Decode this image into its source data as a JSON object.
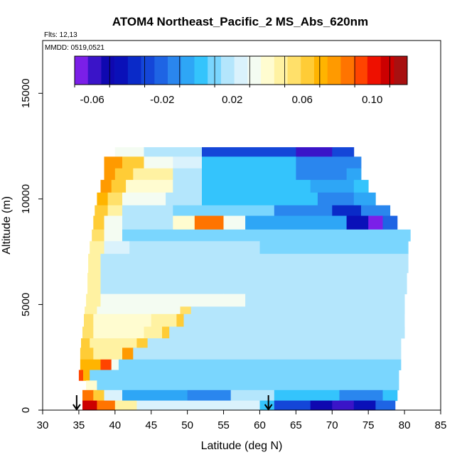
{
  "chart_data": {
    "type": "heatmap",
    "title": "ATOM4 Northeast_Pacific_2 MS_Abs_620nm",
    "notes": [
      "Flts: 12,13",
      "MMDD: 0519,0521"
    ],
    "xlabel": "Latitude (deg N)",
    "ylabel": "Altitude (m)",
    "xlim": [
      30,
      85
    ],
    "ylim": [
      0,
      17500
    ],
    "x_ticks": [
      "30",
      "35",
      "40",
      "45",
      "50",
      "55",
      "60",
      "65",
      "70",
      "75",
      "80",
      "85"
    ],
    "y_ticks": [
      "0",
      "5000",
      "10000",
      "15000"
    ],
    "colorbar": {
      "range": [
        -0.07,
        0.12
      ],
      "tick_values": [
        -0.06,
        -0.02,
        0.02,
        0.06,
        0.1
      ],
      "tick_labels": [
        "-0.06",
        "-0.02",
        "0.02",
        "0.06",
        "0.10"
      ],
      "colors": [
        "#7b1fe8",
        "#3a14c8",
        "#0f08b0",
        "#0a10b8",
        "#0a2ac8",
        "#1446d8",
        "#1e64e4",
        "#2a86ee",
        "#2ea6f6",
        "#34c4fc",
        "#7ad6fe",
        "#b4e6fc",
        "#daf2fc",
        "#f4fcf2",
        "#fffcd0",
        "#fff2a2",
        "#ffe06a",
        "#ffcc36",
        "#ffb400",
        "#ff9a00",
        "#ff7400",
        "#ff4400",
        "#ee1000",
        "#cc0000",
        "#a81010"
      ]
    },
    "arrows_lat": [
      34.7,
      61.2
    ],
    "bands": [
      {
        "alt": [
          12000,
          12450
        ],
        "segs": [
          [
            40,
            44,
            0.03
          ],
          [
            44,
            52,
            0.015
          ],
          [
            52,
            65,
            -0.025
          ],
          [
            65,
            70,
            -0.055
          ],
          [
            70,
            73,
            -0.03
          ]
        ]
      },
      {
        "alt": [
          11450,
          12000
        ],
        "segs": [
          [
            38.5,
            41,
            0.08
          ],
          [
            41,
            44,
            0.065
          ],
          [
            44,
            48,
            0.035
          ],
          [
            48,
            52,
            0.025
          ],
          [
            52,
            65,
            0.0
          ],
          [
            65,
            70,
            -0.015
          ],
          [
            70,
            74,
            -0.01
          ]
        ]
      },
      {
        "alt": [
          10900,
          11450
        ],
        "segs": [
          [
            38.5,
            40,
            0.08
          ],
          [
            40,
            42.5,
            0.065
          ],
          [
            42.5,
            48,
            0.045
          ],
          [
            48,
            52,
            0.02
          ],
          [
            52,
            65,
            0.005
          ],
          [
            65,
            72,
            -0.01
          ],
          [
            72,
            74,
            -0.005
          ]
        ]
      },
      {
        "alt": [
          10300,
          10900
        ],
        "segs": [
          [
            38,
            39.5,
            0.075
          ],
          [
            39.5,
            41.5,
            0.06
          ],
          [
            41.5,
            48,
            0.04
          ],
          [
            48,
            52,
            0.015
          ],
          [
            52,
            67,
            0.005
          ],
          [
            67,
            73,
            -0.005
          ],
          [
            73,
            75,
            0.0
          ]
        ]
      },
      {
        "alt": [
          9700,
          10300
        ],
        "segs": [
          [
            37.5,
            39,
            0.07
          ],
          [
            39,
            41,
            0.055
          ],
          [
            41,
            47,
            0.035
          ],
          [
            47,
            52,
            0.02
          ],
          [
            52,
            68,
            0.0
          ],
          [
            68,
            73,
            -0.015
          ],
          [
            73,
            76,
            -0.005
          ]
        ]
      },
      {
        "alt": [
          9200,
          9700
        ],
        "segs": [
          [
            37.2,
            39,
            0.065
          ],
          [
            39,
            41,
            0.045
          ],
          [
            41,
            48,
            0.02
          ],
          [
            48,
            62,
            0.01
          ],
          [
            62,
            70,
            -0.015
          ],
          [
            70,
            74,
            -0.035
          ],
          [
            74,
            78,
            -0.015
          ]
        ]
      },
      {
        "alt": [
          8550,
          9200
        ],
        "segs": [
          [
            37,
            38.5,
            0.06
          ],
          [
            38.5,
            41,
            0.03
          ],
          [
            41,
            48,
            0.015
          ],
          [
            48,
            51,
            0.04
          ],
          [
            51,
            55,
            0.085
          ],
          [
            55,
            58,
            0.035
          ],
          [
            58,
            72,
            -0.005
          ],
          [
            72,
            75,
            -0.045
          ],
          [
            75,
            77,
            -0.065
          ],
          [
            77,
            79,
            -0.02
          ]
        ]
      },
      {
        "alt": [
          8000,
          8550
        ],
        "segs": [
          [
            36.8,
            38.5,
            0.055
          ],
          [
            38.5,
            41,
            0.03
          ],
          [
            41,
            55,
            0.01
          ],
          [
            55,
            75,
            0.01
          ],
          [
            75,
            80.8,
            0.01
          ]
        ]
      },
      {
        "alt": [
          7400,
          8000
        ],
        "segs": [
          [
            36.5,
            38.5,
            0.05
          ],
          [
            38.5,
            42,
            0.025
          ],
          [
            42,
            60,
            0.015
          ],
          [
            60,
            80.5,
            0.01
          ]
        ]
      },
      {
        "alt": [
          6500,
          7400
        ],
        "segs": [
          [
            36.3,
            38,
            0.05
          ],
          [
            38,
            42,
            0.02
          ],
          [
            42,
            80.5,
            0.015
          ]
        ]
      },
      {
        "alt": [
          5500,
          6500
        ],
        "segs": [
          [
            36.2,
            38,
            0.045
          ],
          [
            38,
            42,
            0.02
          ],
          [
            42,
            80.3,
            0.015
          ]
        ]
      },
      {
        "alt": [
          4900,
          5500
        ],
        "segs": [
          [
            36,
            38,
            0.045
          ],
          [
            38,
            55,
            0.03
          ],
          [
            55,
            58,
            0.035
          ],
          [
            58,
            80,
            0.015
          ]
        ]
      },
      {
        "alt": [
          4550,
          4900
        ],
        "segs": [
          [
            35.8,
            37.5,
            0.05
          ],
          [
            37.5,
            49,
            0.03
          ],
          [
            49,
            50.5,
            0.055
          ],
          [
            50.5,
            80,
            0.015
          ]
        ]
      },
      {
        "alt": [
          3950,
          4550
        ],
        "segs": [
          [
            35.7,
            37,
            0.055
          ],
          [
            37,
            45,
            0.04
          ],
          [
            45,
            48.5,
            0.045
          ],
          [
            48.5,
            49.5,
            0.06
          ],
          [
            49.5,
            80,
            0.015
          ]
        ]
      },
      {
        "alt": [
          3400,
          3950
        ],
        "segs": [
          [
            35.5,
            37,
            0.055
          ],
          [
            37,
            44,
            0.04
          ],
          [
            44,
            46.5,
            0.05
          ],
          [
            46.5,
            47.5,
            0.065
          ],
          [
            47.5,
            80,
            0.015
          ]
        ]
      },
      {
        "alt": [
          2950,
          3400
        ],
        "segs": [
          [
            35.3,
            36.5,
            0.06
          ],
          [
            36.5,
            43,
            0.045
          ],
          [
            43,
            44.5,
            0.06
          ],
          [
            44.5,
            79.5,
            0.015
          ]
        ]
      },
      {
        "alt": [
          2400,
          2950
        ],
        "segs": [
          [
            35.2,
            37,
            0.06
          ],
          [
            37,
            41,
            0.05
          ],
          [
            41,
            42.5,
            0.08
          ],
          [
            42.5,
            79.5,
            0.015
          ]
        ]
      },
      {
        "alt": [
          1900,
          2400
        ],
        "segs": [
          [
            35.2,
            38,
            0.07
          ],
          [
            38,
            39.5,
            0.09
          ],
          [
            39.5,
            40.5,
            0.03
          ],
          [
            40.5,
            79.5,
            0.01
          ]
        ]
      },
      {
        "alt": [
          1400,
          1900
        ],
        "segs": [
          [
            35,
            35.6,
            0.09
          ],
          [
            35.6,
            36.5,
            0.07
          ],
          [
            36.5,
            79.2,
            0.01
          ]
        ]
      },
      {
        "alt": [
          950,
          1400
        ],
        "segs": [
          [
            36,
            37.5,
            0.04
          ],
          [
            37.5,
            79.2,
            0.01
          ]
        ]
      },
      {
        "alt": [
          450,
          950
        ],
        "segs": [
          [
            35.5,
            37,
            0.085
          ],
          [
            37,
            38.5,
            0.06
          ],
          [
            38.5,
            41,
            0.025
          ],
          [
            41,
            50,
            -0.005
          ],
          [
            50,
            56,
            -0.01
          ],
          [
            56,
            62,
            0.015
          ],
          [
            62,
            71,
            0.005
          ],
          [
            71,
            77,
            -0.01
          ],
          [
            77,
            79,
            0.0
          ]
        ]
      },
      {
        "alt": [
          0,
          450
        ],
        "segs": [
          [
            35.5,
            37.5,
            0.11
          ],
          [
            37.5,
            40,
            0.085
          ],
          [
            40,
            43,
            0.05
          ],
          [
            43,
            60,
            0.025
          ],
          [
            60,
            62,
            0.005
          ],
          [
            62,
            67,
            -0.03
          ],
          [
            67,
            70,
            -0.05
          ],
          [
            70,
            73,
            -0.06
          ],
          [
            73,
            76,
            -0.04
          ],
          [
            76,
            78.7,
            -0.02
          ]
        ]
      }
    ]
  }
}
